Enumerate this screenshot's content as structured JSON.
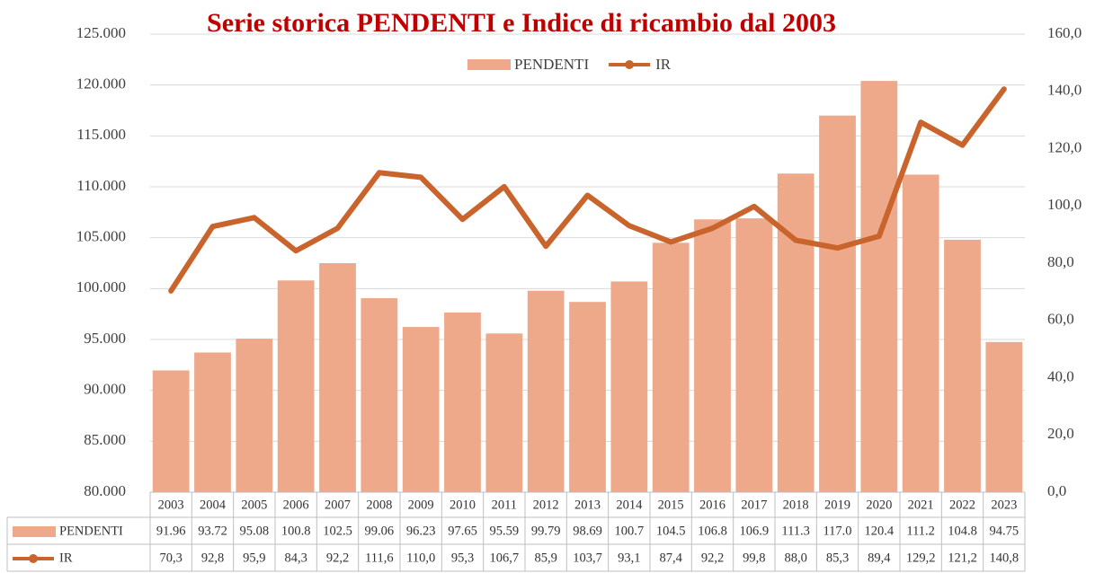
{
  "chart_data": {
    "type": "bar",
    "title": "Serie storica PENDENTI e Indice di ricambio dal 2003",
    "categories": [
      "2003",
      "2004",
      "2005",
      "2006",
      "2007",
      "2008",
      "2009",
      "2010",
      "2011",
      "2012",
      "2013",
      "2014",
      "2015",
      "2016",
      "2017",
      "2018",
      "2019",
      "2020",
      "2021",
      "2022",
      "2023"
    ],
    "series": [
      {
        "name": "PENDENTI",
        "type": "bar",
        "color": "#eda98a",
        "values": [
          91960,
          93720,
          95080,
          100800,
          102500,
          99060,
          96230,
          97650,
          95590,
          99790,
          98690,
          100700,
          104500,
          106800,
          106900,
          111300,
          117000,
          120400,
          111200,
          104800,
          94750
        ],
        "value_labels": [
          "91.96",
          "93.72",
          "95.08",
          "100.8",
          "102.5",
          "99.06",
          "96.23",
          "97.65",
          "95.59",
          "99.79",
          "98.69",
          "100.7",
          "104.5",
          "106.8",
          "106.9",
          "111.3",
          "117.0",
          "120.4",
          "111.2",
          "104.8",
          "94.75"
        ]
      },
      {
        "name": "IR",
        "type": "line",
        "axis": "y2",
        "color": "#c8642c",
        "values": [
          70.3,
          92.8,
          95.9,
          84.3,
          92.2,
          111.6,
          110.0,
          95.3,
          106.7,
          85.9,
          103.7,
          93.1,
          87.4,
          92.2,
          99.8,
          88.0,
          85.3,
          89.4,
          129.2,
          121.2,
          140.8
        ],
        "value_labels": [
          "70,3",
          "92,8",
          "95,9",
          "84,3",
          "92,2",
          "111,6",
          "110,0",
          "95,3",
          "106,7",
          "85,9",
          "103,7",
          "93,1",
          "87,4",
          "92,2",
          "99,8",
          "88,0",
          "85,3",
          "89,4",
          "129,2",
          "121,2",
          "140,8"
        ]
      }
    ],
    "ylim": [
      80000,
      125000
    ],
    "yticks": [
      {
        "value": 80000,
        "label": "80.000"
      },
      {
        "value": 85000,
        "label": "85.000"
      },
      {
        "value": 90000,
        "label": "90.000"
      },
      {
        "value": 95000,
        "label": "95.000"
      },
      {
        "value": 100000,
        "label": "100.000"
      },
      {
        "value": 105000,
        "label": "105.000"
      },
      {
        "value": 110000,
        "label": "110.000"
      },
      {
        "value": 115000,
        "label": "115.000"
      },
      {
        "value": 120000,
        "label": "120.000"
      },
      {
        "value": 125000,
        "label": "125.000"
      }
    ],
    "y2lim": [
      0,
      160
    ],
    "y2ticks": [
      {
        "value": 0,
        "label": "0,0"
      },
      {
        "value": 20,
        "label": "20,0"
      },
      {
        "value": 40,
        "label": "40,0"
      },
      {
        "value": 60,
        "label": "60,0"
      },
      {
        "value": 80,
        "label": "80,0"
      },
      {
        "value": 100,
        "label": "100,0"
      },
      {
        "value": 120,
        "label": "120,0"
      },
      {
        "value": 140,
        "label": "140,0"
      },
      {
        "value": 160,
        "label": "160,0"
      }
    ],
    "grid": true
  }
}
